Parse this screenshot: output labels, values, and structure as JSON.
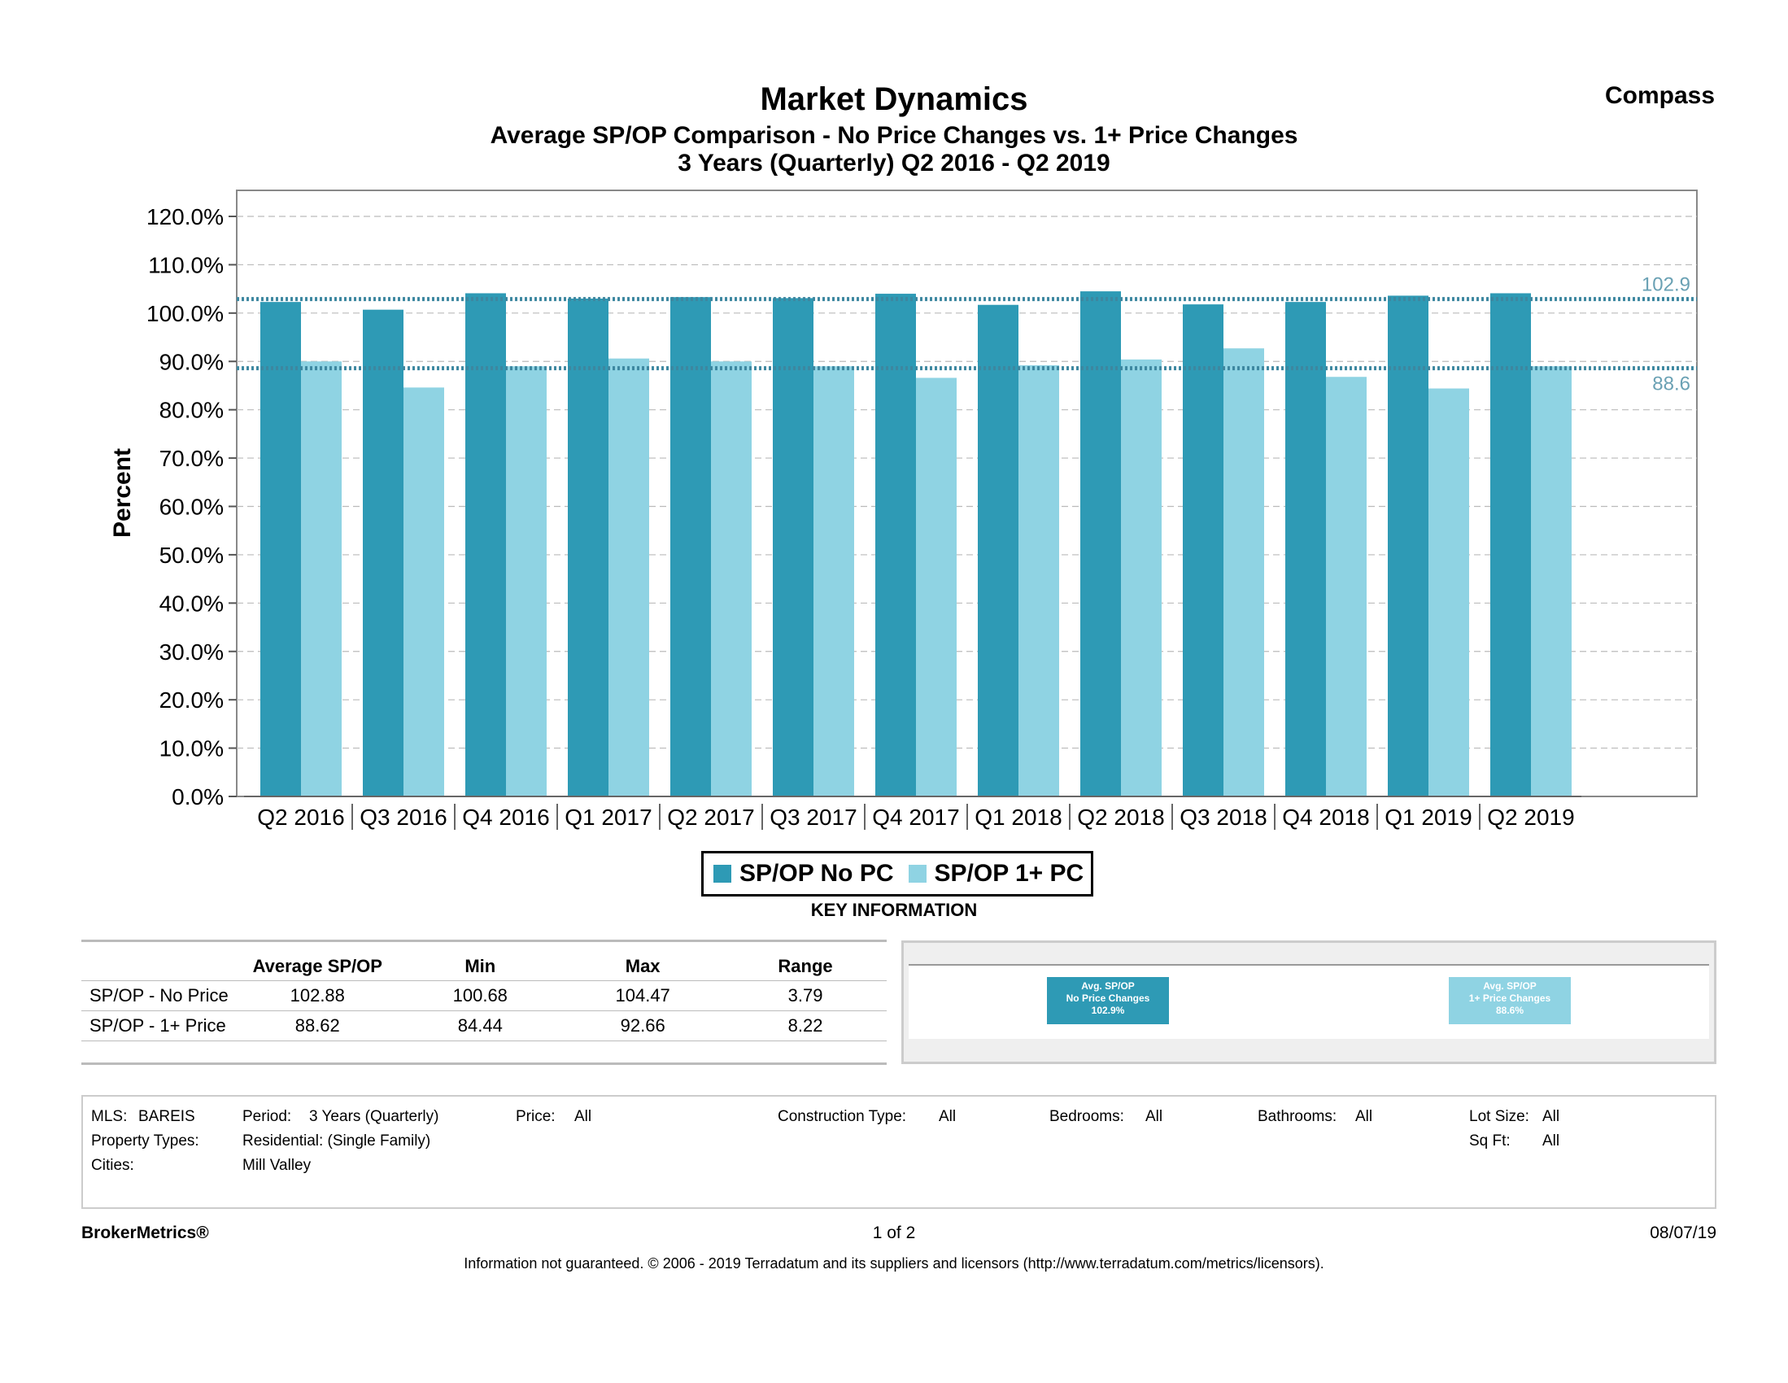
{
  "header": {
    "title": "Market Dynamics",
    "brand": "Compass",
    "subtitle": "Average SP/OP Comparison - No Price Changes vs. 1+ Price Changes",
    "period_line": "3 Years (Quarterly) Q2 2016 - Q2 2019"
  },
  "colors": {
    "no_pc": "#2e9ab5",
    "one_pc": "#8fd3e3",
    "ref_line": "#3d87a0",
    "ref_label": "#6aa1b4"
  },
  "chart_data": {
    "type": "bar",
    "ylabel": "Percent",
    "ylim": [
      0,
      120
    ],
    "yticks": [
      "120.0%",
      "110.0%",
      "100.0%",
      "90.0%",
      "80.0%",
      "70.0%",
      "60.0%",
      "50.0%",
      "40.0%",
      "30.0%",
      "20.0%",
      "10.0%",
      "0.0%"
    ],
    "ytick_values": [
      120,
      110,
      100,
      90,
      80,
      70,
      60,
      50,
      40,
      30,
      20,
      10,
      0
    ],
    "categories": [
      "Q2 2016",
      "Q3 2016",
      "Q4 2016",
      "Q1 2017",
      "Q2 2017",
      "Q3 2017",
      "Q4 2017",
      "Q1 2018",
      "Q2 2018",
      "Q3 2018",
      "Q4 2018",
      "Q1 2019",
      "Q2 2019"
    ],
    "series": [
      {
        "name": "SP/OP No PC",
        "values": [
          102.3,
          100.7,
          104.1,
          103.0,
          103.3,
          103.1,
          104.0,
          101.7,
          104.5,
          101.8,
          102.3,
          103.6,
          104.1
        ]
      },
      {
        "name": "SP/OP 1+ PC",
        "values": [
          90.0,
          84.6,
          89.0,
          90.6,
          90.0,
          89.0,
          86.6,
          89.2,
          90.4,
          92.7,
          86.8,
          84.4,
          89.0
        ]
      }
    ],
    "reference_lines": [
      {
        "value": 102.9,
        "label": "102.9"
      },
      {
        "value": 88.6,
        "label": "88.6"
      }
    ],
    "grid": true
  },
  "legend": {
    "items": [
      "SP/OP No PC",
      "SP/OP 1+ PC"
    ]
  },
  "key_info": {
    "heading": "KEY INFORMATION",
    "columns": [
      "Average SP/OP",
      "Min",
      "Max",
      "Range"
    ],
    "rows": [
      {
        "label": "SP/OP - No Price",
        "avg": "102.88",
        "min": "100.68",
        "max": "104.47",
        "range": "3.79"
      },
      {
        "label": "SP/OP - 1+ Price",
        "avg": "88.62",
        "min": "84.44",
        "max": "92.66",
        "range": "8.22"
      }
    ],
    "mini": {
      "left": {
        "l1": "Avg. SP/OP",
        "l2": "No Price Changes",
        "l3": "102.9%"
      },
      "right": {
        "l1": "Avg. SP/OP",
        "l2": "1+ Price Changes",
        "l3": "88.6%"
      }
    }
  },
  "filters": {
    "mls_label": "MLS:",
    "mls": "BAREIS",
    "period_label": "Period:",
    "period": "3 Years (Quarterly)",
    "price_label": "Price:",
    "price": "All",
    "construction_label": "Construction Type:",
    "construction": "All",
    "bedrooms_label": "Bedrooms:",
    "bedrooms": "All",
    "bathrooms_label": "Bathrooms:",
    "bathrooms": "All",
    "lotsize_label": "Lot Size:",
    "lotsize": "All",
    "ptype_label": "Property Types:",
    "ptype": "Residential: (Single Family)",
    "sqft_label": "Sq Ft:",
    "sqft": "All",
    "cities_label": "Cities:",
    "cities": "Mill Valley"
  },
  "footer": {
    "left": "BrokerMetrics®",
    "page": "1 of 2",
    "date": "08/07/19",
    "disclaimer": "Information not guaranteed.  © 2006 - 2019 Terradatum and its suppliers and licensors (http://www.terradatum.com/metrics/licensors)."
  }
}
